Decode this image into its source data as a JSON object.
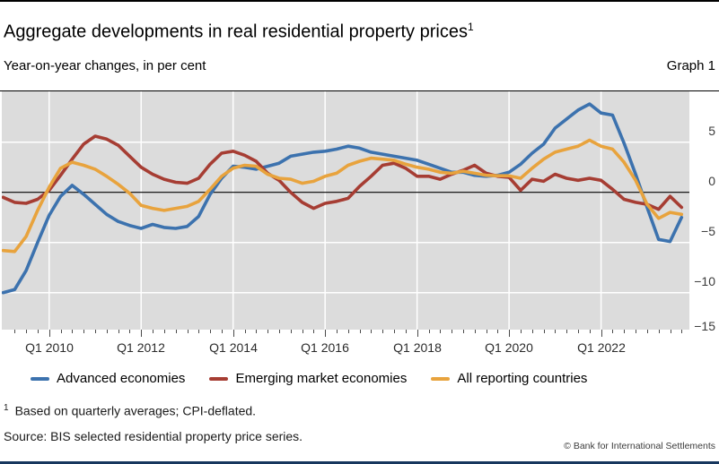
{
  "header": {
    "title": "Aggregate developments in real residential property prices",
    "title_sup": "1",
    "subtitle": "Year-on-year changes, in per cent",
    "graph_label": "Graph 1"
  },
  "chart_data": {
    "type": "line",
    "frequency": "quarterly",
    "x_start": "Q1 2009",
    "x_end": "Q4 2023",
    "x_tick_labels": [
      "Q1 2010",
      "Q1 2012",
      "Q1 2014",
      "Q1 2016",
      "Q1 2018",
      "Q1 2020",
      "Q1 2022"
    ],
    "y_ticks": [
      5,
      0,
      -5,
      -10,
      -15
    ],
    "y_tick_labels": [
      "5",
      "0",
      "−5",
      "−10",
      "−15"
    ],
    "ylim": [
      -13.7,
      10.2
    ],
    "grid": true,
    "zero_line": true,
    "plot_background": "#dcdcdc",
    "grid_color": "#ffffff",
    "legend_position": "bottom",
    "series": [
      {
        "name": "Advanced economies",
        "color": "#3c72ae",
        "values": [
          -10.0,
          -9.7,
          -7.8,
          -5.0,
          -2.3,
          -0.4,
          0.7,
          -0.2,
          -1.2,
          -2.2,
          -2.9,
          -3.3,
          -3.6,
          -3.2,
          -3.5,
          -3.6,
          -3.4,
          -2.4,
          -0.2,
          1.4,
          2.6,
          2.5,
          2.3,
          2.6,
          2.9,
          3.6,
          3.8,
          4.0,
          4.1,
          4.3,
          4.6,
          4.4,
          4.0,
          3.8,
          3.6,
          3.4,
          3.2,
          2.8,
          2.4,
          2.0,
          2.0,
          1.7,
          1.6,
          1.7,
          2.0,
          2.8,
          3.9,
          4.8,
          6.4,
          7.3,
          8.2,
          8.8,
          7.9,
          7.7,
          4.9,
          1.8,
          -1.5,
          -4.7,
          -4.9,
          -2.5
        ]
      },
      {
        "name": "Emerging market economies",
        "color": "#a63d33",
        "values": [
          -0.5,
          -1.0,
          -1.1,
          -0.7,
          0.2,
          1.7,
          3.3,
          4.8,
          5.6,
          5.3,
          4.7,
          3.6,
          2.5,
          1.8,
          1.3,
          1.0,
          0.9,
          1.4,
          2.8,
          3.9,
          4.1,
          3.7,
          3.1,
          1.9,
          1.2,
          0.0,
          -1.0,
          -1.6,
          -1.1,
          -0.9,
          -0.6,
          0.6,
          1.6,
          2.7,
          2.9,
          2.4,
          1.6,
          1.6,
          1.3,
          1.8,
          2.2,
          2.7,
          1.9,
          1.6,
          1.5,
          0.2,
          1.3,
          1.1,
          1.8,
          1.4,
          1.2,
          1.4,
          1.2,
          0.3,
          -0.7,
          -1.0,
          -1.2,
          -1.7,
          -0.4,
          -1.5
        ]
      },
      {
        "name": "All reporting countries",
        "color": "#e8a33d",
        "values": [
          -5.8,
          -5.9,
          -4.4,
          -1.8,
          0.5,
          2.4,
          3.0,
          2.7,
          2.3,
          1.6,
          0.8,
          -0.1,
          -1.3,
          -1.6,
          -1.8,
          -1.6,
          -1.4,
          -0.9,
          0.3,
          1.6,
          2.4,
          2.7,
          2.6,
          1.8,
          1.4,
          1.3,
          0.9,
          1.1,
          1.6,
          1.9,
          2.7,
          3.1,
          3.4,
          3.3,
          3.2,
          2.8,
          2.5,
          2.3,
          2.0,
          1.9,
          2.1,
          1.9,
          1.7,
          1.65,
          1.65,
          1.4,
          2.4,
          3.3,
          4.0,
          4.3,
          4.6,
          5.2,
          4.6,
          4.3,
          3.0,
          1.2,
          -1.2,
          -2.6,
          -2.0,
          -2.2
        ]
      }
    ]
  },
  "footnote": {
    "marker": "1",
    "text": "Based on quarterly averages; CPI-deflated."
  },
  "source": "Source: BIS selected residential property price series.",
  "copyright": "© Bank for International Settlements"
}
